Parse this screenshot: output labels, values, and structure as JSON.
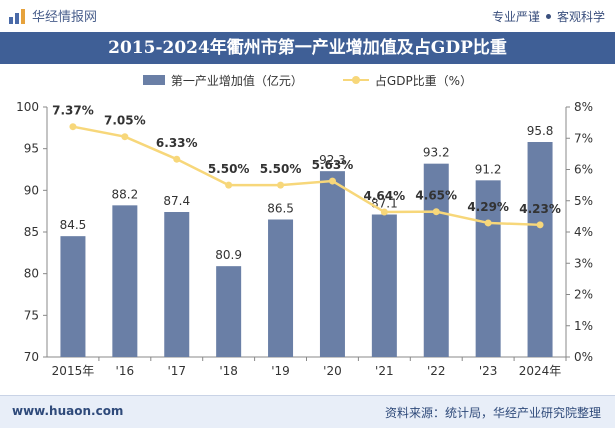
{
  "header": {
    "brand": "华经情报网",
    "slogan_left": "专业严谨",
    "slogan_right": "客观科学"
  },
  "title": "2015-2024年衢州市第一产业增加值及占GDP比重",
  "footer": {
    "website": "www.huaon.com",
    "source": "资料来源：统计局，华经产业研究院整理"
  },
  "colors": {
    "bar": "#6a7fa6",
    "line": "#f7d77a",
    "title_bg": "#3f5f96"
  },
  "chart_data": {
    "type": "bar+line",
    "categories": [
      "2015年",
      "'16",
      "'17",
      "'18",
      "'19",
      "'20",
      "'21",
      "'22",
      "'23",
      "2024年"
    ],
    "series": [
      {
        "name": "第一产业增加值（亿元）",
        "type": "bar",
        "axis": "left",
        "values": [
          84.5,
          88.2,
          87.4,
          80.9,
          86.5,
          92.3,
          87.1,
          93.2,
          91.2,
          95.8
        ],
        "labels": [
          "84.5",
          "88.2",
          "87.4",
          "80.9",
          "86.5",
          "92.3",
          "87.1",
          "93.2",
          "91.2",
          "95.8"
        ]
      },
      {
        "name": "占GDP比重（%）",
        "type": "line",
        "axis": "right",
        "values": [
          7.37,
          7.05,
          6.33,
          5.5,
          5.5,
          5.63,
          4.64,
          4.65,
          4.29,
          4.23
        ],
        "labels": [
          "7.37%",
          "7.05%",
          "6.33%",
          "5.50%",
          "5.50%",
          "5.63%",
          "4.64%",
          "4.65%",
          "4.29%",
          "4.23%"
        ]
      }
    ],
    "y_left": {
      "min": 70,
      "max": 100,
      "ticks": [
        "70",
        "75",
        "80",
        "85",
        "90",
        "95",
        "100"
      ]
    },
    "y_right": {
      "min": 0,
      "max": 8,
      "ticks": [
        "0%",
        "1%",
        "2%",
        "3%",
        "4%",
        "5%",
        "6%",
        "7%",
        "8%"
      ]
    },
    "legend_position": "top-center",
    "grid": false
  }
}
